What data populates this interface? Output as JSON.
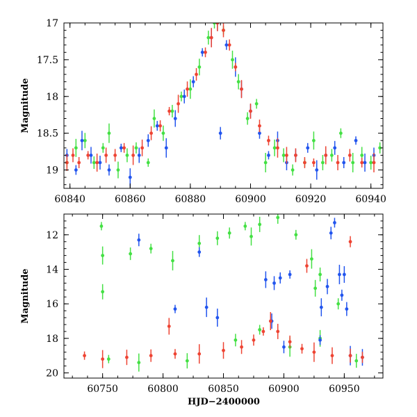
{
  "chart_data": [
    {
      "type": "scatter",
      "title": "",
      "xlabel": "",
      "ylabel": "Magnitude",
      "xlim": [
        60838,
        60944
      ],
      "ylim": [
        19.25,
        17.0
      ],
      "y_inverted": true,
      "xticks": [
        60840,
        60860,
        60880,
        60900,
        60920,
        60940
      ],
      "xtick_labels": [
        "60840",
        "60860",
        "60880",
        "60900",
        "60920",
        "60940"
      ],
      "yticks": [
        17,
        17.5,
        18,
        18.5,
        19
      ],
      "ytick_labels": [
        "17",
        "17.5",
        "18",
        "18.5",
        "19"
      ],
      "series": [
        {
          "name": "green",
          "color": "#44e044",
          "values": [
            [
              60839,
              18.9
            ],
            [
              60842,
              18.7
            ],
            [
              60845,
              18.6
            ],
            [
              60848,
              18.9
            ],
            [
              60851,
              18.7
            ],
            [
              60853,
              18.5
            ],
            [
              60856,
              19.0
            ],
            [
              60859,
              18.8
            ],
            [
              60862,
              18.7
            ],
            [
              60866,
              18.9
            ],
            [
              60868,
              18.3
            ],
            [
              60871,
              18.5
            ],
            [
              60874,
              18.2
            ],
            [
              60877,
              18.0
            ],
            [
              60880,
              17.9
            ],
            [
              60883,
              17.6
            ],
            [
              60886,
              17.2
            ],
            [
              60888,
              17.0
            ],
            [
              60891,
              17.1
            ],
            [
              60894,
              17.5
            ],
            [
              60896,
              17.8
            ],
            [
              60899,
              18.3
            ],
            [
              60902,
              18.1
            ],
            [
              60905,
              18.9
            ],
            [
              60908,
              18.7
            ],
            [
              60911,
              18.8
            ],
            [
              60914,
              19.0
            ],
            [
              60918,
              18.9
            ],
            [
              60921,
              18.6
            ],
            [
              60924,
              18.9
            ],
            [
              60927,
              18.8
            ],
            [
              60930,
              18.5
            ],
            [
              60934,
              18.9
            ],
            [
              60937,
              18.8
            ],
            [
              60940,
              18.9
            ],
            [
              60943,
              18.7
            ]
          ]
        },
        {
          "name": "blue",
          "color": "#2255ee",
          "values": [
            [
              60839,
              18.8
            ],
            [
              60842,
              19.0
            ],
            [
              60844,
              18.6
            ],
            [
              60847,
              18.8
            ],
            [
              60850,
              18.9
            ],
            [
              60853,
              19.0
            ],
            [
              60857,
              18.7
            ],
            [
              60860,
              19.1
            ],
            [
              60863,
              18.8
            ],
            [
              60866,
              18.6
            ],
            [
              60869,
              18.4
            ],
            [
              60872,
              18.7
            ],
            [
              60875,
              18.3
            ],
            [
              60878,
              18.0
            ],
            [
              60881,
              17.8
            ],
            [
              60884,
              17.4
            ],
            [
              60887,
              17.2
            ],
            [
              60889,
              17.0
            ],
            [
              60890,
              18.5
            ],
            [
              60892,
              17.3
            ],
            [
              60895,
              17.6
            ],
            [
              60897,
              17.9
            ],
            [
              60900,
              18.2
            ],
            [
              60903,
              18.5
            ],
            [
              60906,
              18.8
            ],
            [
              60909,
              18.6
            ],
            [
              60912,
              18.9
            ],
            [
              60915,
              18.8
            ],
            [
              60919,
              18.7
            ],
            [
              60922,
              19.0
            ],
            [
              60925,
              18.8
            ],
            [
              60928,
              18.7
            ],
            [
              60931,
              18.9
            ],
            [
              60935,
              18.6
            ],
            [
              60938,
              18.9
            ],
            [
              60941,
              18.8
            ]
          ]
        },
        {
          "name": "red",
          "color": "#ee4433",
          "values": [
            [
              60839,
              18.9
            ],
            [
              60841,
              18.8
            ],
            [
              60843,
              18.9
            ],
            [
              60846,
              18.8
            ],
            [
              60849,
              18.9
            ],
            [
              60852,
              18.8
            ],
            [
              60855,
              18.8
            ],
            [
              60858,
              18.7
            ],
            [
              60861,
              18.8
            ],
            [
              60864,
              18.7
            ],
            [
              60867,
              18.5
            ],
            [
              60870,
              18.4
            ],
            [
              60873,
              18.2
            ],
            [
              60876,
              18.1
            ],
            [
              60879,
              17.9
            ],
            [
              60882,
              17.7
            ],
            [
              60885,
              17.4
            ],
            [
              60887,
              17.2
            ],
            [
              60889,
              17.0
            ],
            [
              60891,
              17.1
            ],
            [
              60893,
              17.3
            ],
            [
              60895,
              17.6
            ],
            [
              60897,
              17.9
            ],
            [
              60900,
              18.2
            ],
            [
              60903,
              18.4
            ],
            [
              60906,
              18.6
            ],
            [
              60909,
              18.7
            ],
            [
              60912,
              18.8
            ],
            [
              60915,
              18.8
            ],
            [
              60918,
              18.9
            ],
            [
              60921,
              18.9
            ],
            [
              60925,
              18.8
            ],
            [
              60929,
              18.9
            ],
            [
              60933,
              18.8
            ],
            [
              60937,
              18.9
            ],
            [
              60941,
              18.9
            ]
          ]
        }
      ]
    },
    {
      "type": "scatter",
      "title": "",
      "xlabel": "HJD−2400000",
      "ylabel": "Magnitude",
      "xlim": [
        60718,
        60982
      ],
      "ylim": [
        20.3,
        10.8
      ],
      "y_inverted": true,
      "xticks": [
        60750,
        60800,
        60850,
        60900,
        60950
      ],
      "xtick_labels": [
        "60750",
        "60800",
        "60850",
        "60900",
        "60950"
      ],
      "yticks": [
        12,
        14,
        16,
        18,
        20
      ],
      "ytick_labels": [
        "12",
        "14",
        "16",
        "18",
        "20"
      ],
      "series": [
        {
          "name": "green",
          "color": "#44e044",
          "values": [
            [
              60749,
              11.5
            ],
            [
              60750,
              13.2
            ],
            [
              60750,
              15.3
            ],
            [
              60773,
              13.1
            ],
            [
              60790,
              12.8
            ],
            [
              60808,
              13.5
            ],
            [
              60830,
              12.5
            ],
            [
              60845,
              12.2
            ],
            [
              60855,
              11.9
            ],
            [
              60868,
              11.5
            ],
            [
              60873,
              12.1
            ],
            [
              60880,
              11.4
            ],
            [
              60895,
              11.0
            ],
            [
              60910,
              12.0
            ],
            [
              60923,
              13.4
            ],
            [
              60926,
              15.1
            ],
            [
              60930,
              14.3
            ],
            [
              60945,
              16.0
            ],
            [
              60755,
              19.2
            ],
            [
              60780,
              19.4
            ],
            [
              60820,
              19.3
            ],
            [
              60860,
              18.1
            ],
            [
              60880,
              17.5
            ],
            [
              60905,
              18.5
            ],
            [
              60930,
              18.0
            ],
            [
              60960,
              19.3
            ]
          ]
        },
        {
          "name": "blue",
          "color": "#2255ee",
          "values": [
            [
              60780,
              12.3
            ],
            [
              60830,
              13.0
            ],
            [
              60836,
              16.2
            ],
            [
              60885,
              14.6
            ],
            [
              60892,
              14.8
            ],
            [
              60897,
              14.5
            ],
            [
              60905,
              14.3
            ],
            [
              60931,
              16.2
            ],
            [
              60936,
              15.0
            ],
            [
              60939,
              11.9
            ],
            [
              60942,
              11.3
            ],
            [
              60946,
              14.3
            ],
            [
              60950,
              14.3
            ],
            [
              60952,
              16.3
            ],
            [
              60948,
              15.5
            ],
            [
              60810,
              16.3
            ],
            [
              60845,
              16.8
            ],
            [
              60890,
              17.0
            ],
            [
              60900,
              18.5
            ],
            [
              60930,
              18.1
            ],
            [
              60955,
              19.0
            ],
            [
              60965,
              19.1
            ]
          ]
        },
        {
          "name": "red",
          "color": "#ee4433",
          "values": [
            [
              60805,
              17.3
            ],
            [
              60919,
              13.8
            ],
            [
              60955,
              12.4
            ],
            [
              60735,
              19.0
            ],
            [
              60750,
              19.2
            ],
            [
              60770,
              19.1
            ],
            [
              60790,
              19.0
            ],
            [
              60810,
              18.9
            ],
            [
              60830,
              18.9
            ],
            [
              60850,
              18.7
            ],
            [
              60865,
              18.5
            ],
            [
              60875,
              18.1
            ],
            [
              60883,
              17.6
            ],
            [
              60889,
              17.0
            ],
            [
              60895,
              17.6
            ],
            [
              60905,
              18.2
            ],
            [
              60915,
              18.6
            ],
            [
              60925,
              18.8
            ],
            [
              60940,
              19.0
            ],
            [
              60955,
              19.0
            ],
            [
              60965,
              19.1
            ]
          ]
        }
      ]
    }
  ]
}
